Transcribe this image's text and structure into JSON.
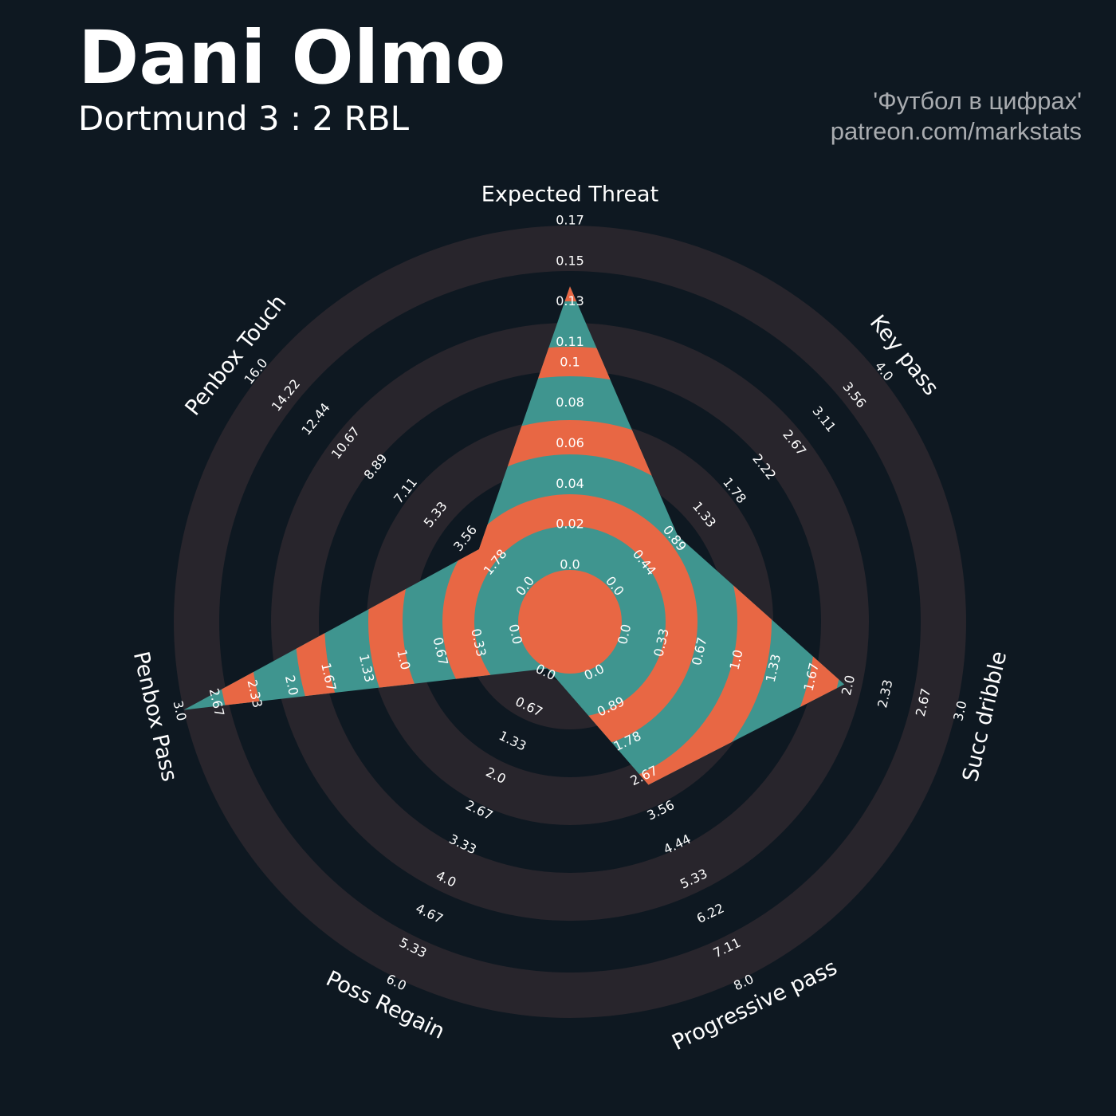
{
  "chart_data": {
    "type": "radar",
    "title": "Dani Olmo",
    "subtitle": "Dortmund 3 : 2 RBL",
    "annotations": [
      "'Футбол в цифрах'",
      "patreon.com/markstats"
    ],
    "params": [
      "Expected Threat",
      "Key pass",
      "Succ dribble",
      "Progressive pass",
      "Poss Regain",
      "Penbox Pass",
      "Penbox Touch"
    ],
    "values": [
      0.14,
      1,
      2,
      3,
      0,
      3,
      3
    ],
    "ranges": [
      [
        0,
        0.17
      ],
      [
        0,
        4
      ],
      [
        0,
        3
      ],
      [
        0,
        8
      ],
      [
        0,
        6
      ],
      [
        0,
        3
      ],
      [
        0,
        16
      ]
    ],
    "ticks": [
      [
        {
          "value": 0,
          "label": "0.0"
        },
        0.02,
        0.04,
        0.06,
        0.08,
        0.1,
        0.11,
        0.13,
        0.15,
        0.17
      ],
      [
        {
          "value": 0,
          "label": "0.0"
        },
        0.44,
        0.89,
        1.33,
        1.78,
        2.22,
        2.67,
        3.11,
        3.56,
        {
          "value": 4,
          "label": "4.0"
        }
      ],
      [
        {
          "value": 0,
          "label": "0.0"
        },
        0.33,
        0.67,
        {
          "value": 1,
          "label": "1.0"
        },
        1.33,
        1.67,
        {
          "value": 2,
          "label": "2.0"
        },
        2.33,
        2.67,
        {
          "value": 3,
          "label": "3.0"
        }
      ],
      [
        {
          "value": 0,
          "label": "0.0"
        },
        0.89,
        1.78,
        2.67,
        3.56,
        4.44,
        5.33,
        6.22,
        7.11,
        {
          "value": 8,
          "label": "8.0"
        }
      ],
      [
        {
          "value": 0,
          "label": "0.0"
        },
        0.67,
        1.33,
        {
          "value": 2,
          "label": "2.0"
        },
        2.67,
        3.33,
        {
          "value": 4,
          "label": "4.0"
        },
        4.67,
        5.33,
        {
          "value": 6,
          "label": "6.0"
        }
      ],
      [
        {
          "value": 0,
          "label": "0.0"
        },
        0.33,
        0.67,
        {
          "value": 1,
          "label": "1.0"
        },
        1.33,
        1.67,
        {
          "value": 2,
          "label": "2.0"
        },
        2.33,
        2.67,
        {
          "value": 3,
          "label": "3.0"
        }
      ],
      [
        {
          "value": 0,
          "label": "0.0"
        },
        1.78,
        3.56,
        5.33,
        7.11,
        8.89,
        10.67,
        12.44,
        14.22,
        {
          "value": 16,
          "label": "16.0"
        }
      ]
    ],
    "color": "#3f958f",
    "band_color": "#e86744",
    "ring_color": "#28252c"
  }
}
